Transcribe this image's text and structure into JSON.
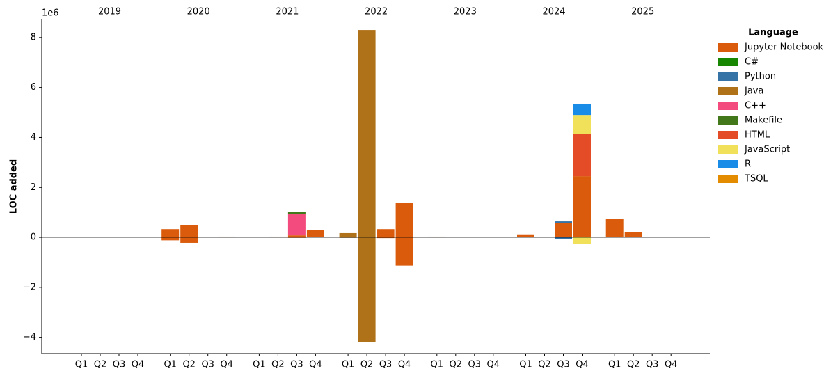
{
  "chart_data": {
    "type": "stacked_bar",
    "y_label": "LOC added",
    "y_offset_label": "1e6",
    "legend_title": "Language",
    "legend_position": "outside right",
    "groups": [
      "2019",
      "2020",
      "2021",
      "2022",
      "2023",
      "2024",
      "2025"
    ],
    "categories": [
      "Q1",
      "Q2",
      "Q3",
      "Q4",
      "Q1",
      "Q2",
      "Q3",
      "Q4",
      "Q1",
      "Q2",
      "Q3",
      "Q4",
      "Q1",
      "Q2",
      "Q3",
      "Q4",
      "Q1",
      "Q2",
      "Q3",
      "Q4",
      "Q1",
      "Q2",
      "Q3",
      "Q4",
      "Q1",
      "Q2",
      "Q3",
      "Q4"
    ],
    "ylim": [
      -4.65,
      8.72
    ],
    "yticks": [
      {
        "value": -4,
        "label": "−4"
      },
      {
        "value": -2,
        "label": "−2"
      },
      0,
      2,
      4,
      6,
      8
    ],
    "series": [
      {
        "name": "Jupyter Notebook",
        "color": "#DA5B0B",
        "values": [
          0,
          0,
          0,
          0,
          0.33,
          0.5,
          0,
          0.03,
          0,
          0.03,
          0.08,
          0.3,
          0,
          0,
          0.33,
          1.37,
          0.03,
          0,
          0,
          0,
          0.12,
          0,
          0.58,
          2.45,
          0.73,
          0.2,
          0,
          0
        ],
        "removed_values": [
          0,
          0,
          0,
          0,
          -0.12,
          -0.22,
          0,
          0,
          0,
          0,
          -0.02,
          0,
          0,
          0,
          -0.03,
          -1.13,
          0,
          0,
          0,
          0,
          0,
          0,
          0,
          0,
          0,
          0,
          0,
          0
        ]
      },
      {
        "name": "C#",
        "color": "#178600",
        "values": [
          0,
          0,
          0,
          0,
          0,
          0,
          0,
          0,
          0,
          0,
          0,
          0,
          0,
          0,
          0,
          0,
          0,
          0,
          0,
          0,
          0,
          0,
          0,
          0,
          0,
          0,
          0,
          0
        ],
        "removed_values": [
          0,
          0,
          0,
          0,
          0,
          0,
          0,
          0,
          0,
          0,
          0,
          0,
          0,
          0,
          0,
          0,
          0,
          0,
          0,
          0,
          0,
          0,
          0,
          0,
          0,
          0,
          0,
          0
        ]
      },
      {
        "name": "Python",
        "color": "#3572A5",
        "values": [
          0,
          0,
          0,
          0,
          0,
          0,
          0,
          0,
          0,
          0,
          0,
          0,
          0,
          0,
          0,
          0,
          0,
          0,
          0,
          0,
          0,
          0,
          0.06,
          0,
          0,
          0,
          0,
          0
        ],
        "removed_values": [
          0,
          0,
          0,
          0,
          0,
          0,
          0,
          0,
          0,
          0,
          0,
          0,
          0,
          0,
          0,
          0,
          0,
          0,
          0,
          0,
          0,
          0,
          -0.08,
          0,
          0,
          0,
          0,
          0
        ]
      },
      {
        "name": "Java",
        "color": "#B07219",
        "values": [
          0,
          0,
          0,
          0,
          0,
          0,
          0,
          0,
          0,
          0,
          0,
          0,
          0.17,
          8.3,
          0,
          0,
          0,
          0,
          0,
          0,
          0,
          0,
          0,
          0,
          0,
          0,
          0,
          0
        ],
        "removed_values": [
          0,
          0,
          0,
          0,
          0,
          0,
          0,
          0,
          0,
          0,
          0,
          0,
          -0.02,
          -4.2,
          0,
          0,
          0,
          0,
          0,
          0,
          0,
          0,
          0,
          0,
          0,
          0,
          0,
          0
        ]
      },
      {
        "name": "C++",
        "color": "#F34B7D",
        "values": [
          0,
          0,
          0,
          0,
          0,
          0,
          0,
          0,
          0,
          0,
          0.84,
          0,
          0,
          0,
          0,
          0,
          0,
          0,
          0,
          0,
          0,
          0,
          0,
          0,
          0,
          0,
          0,
          0
        ],
        "removed_values": [
          0,
          0,
          0,
          0,
          0,
          0,
          0,
          0,
          0,
          0,
          0,
          0,
          0,
          0,
          0,
          0,
          0,
          0,
          0,
          0,
          0,
          0,
          0,
          0,
          0,
          0,
          0,
          0
        ]
      },
      {
        "name": "Makefile",
        "color": "#427819",
        "values": [
          0,
          0,
          0,
          0,
          0,
          0,
          0,
          0,
          0,
          0,
          0.11,
          0,
          0,
          0,
          0,
          0,
          0,
          0,
          0,
          0,
          0,
          0,
          0,
          0,
          0,
          0,
          0,
          0
        ],
        "removed_values": [
          0,
          0,
          0,
          0,
          0,
          0,
          0,
          0,
          0,
          0,
          0,
          0,
          0,
          0,
          0,
          0,
          0,
          0,
          0,
          0,
          0,
          0,
          0,
          0,
          0,
          0,
          0,
          0
        ]
      },
      {
        "name": "HTML",
        "color": "#E34C26",
        "values": [
          0,
          0,
          0,
          0,
          0,
          0,
          0,
          0,
          0,
          0,
          0,
          0,
          0,
          0,
          0,
          0,
          0,
          0,
          0,
          0,
          0,
          0,
          0,
          1.7,
          0,
          0,
          0,
          0
        ],
        "removed_values": [
          0,
          0,
          0,
          0,
          0,
          0,
          0,
          0,
          0,
          0,
          0,
          0,
          0,
          0,
          0,
          0,
          0,
          0,
          0,
          0,
          0,
          0,
          0,
          0,
          0,
          0,
          0,
          0
        ]
      },
      {
        "name": "JavaScript",
        "color": "#F1E05A",
        "values": [
          0,
          0,
          0,
          0,
          0,
          0,
          0,
          0,
          0,
          0,
          0,
          0,
          0,
          0,
          0,
          0,
          0,
          0,
          0,
          0,
          0,
          0,
          0,
          0.75,
          0,
          0,
          0,
          0
        ],
        "removed_values": [
          0,
          0,
          0,
          0,
          0,
          0,
          0,
          0,
          0,
          0,
          0,
          0,
          0,
          0,
          0,
          0,
          0,
          0,
          0,
          0,
          0,
          0,
          0,
          -0.27,
          0,
          0,
          0,
          0
        ]
      },
      {
        "name": "R",
        "color": "#198CE7",
        "values": [
          0,
          0,
          0,
          0,
          0,
          0,
          0,
          0,
          0,
          0,
          0,
          0,
          0,
          0,
          0,
          0,
          0,
          0,
          0,
          0,
          0,
          0,
          0,
          0.45,
          0,
          0,
          0,
          0
        ],
        "removed_values": [
          0,
          0,
          0,
          0,
          0,
          0,
          0,
          0,
          0,
          0,
          0,
          0,
          0,
          0,
          0,
          0,
          0,
          0,
          0,
          0,
          0,
          0,
          0,
          0,
          0,
          0,
          0,
          0
        ]
      },
      {
        "name": "TSQL",
        "color": "#E38C00",
        "values": [
          0,
          0,
          0,
          0,
          0,
          0,
          0,
          0,
          0,
          0,
          0,
          0,
          0,
          0,
          0,
          0,
          0,
          0,
          0,
          0,
          0,
          0,
          0,
          0,
          0,
          0,
          0,
          0
        ],
        "removed_values": [
          0,
          0,
          0,
          0,
          0,
          0,
          0,
          0,
          0,
          0,
          0,
          0,
          0,
          0,
          0,
          0,
          0,
          0,
          0,
          0,
          0,
          0,
          0,
          0,
          0,
          0,
          0,
          0
        ]
      }
    ]
  }
}
